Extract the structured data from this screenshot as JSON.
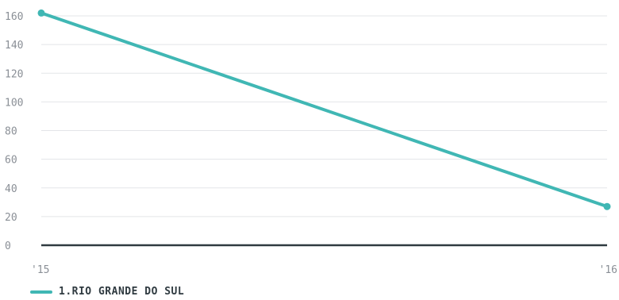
{
  "chart_data": {
    "type": "line",
    "x": [
      "'15",
      "'16"
    ],
    "series": [
      {
        "name": "1.RIO GRANDE DO SUL",
        "values": [
          162,
          27
        ],
        "color": "#40b7b4"
      }
    ],
    "yticks": [
      "0",
      "20",
      "40",
      "60",
      "80",
      "100",
      "120",
      "140",
      "160"
    ],
    "ylim": [
      0,
      160
    ],
    "grid": true,
    "legend_position": "bottom-left",
    "title": "",
    "xlabel": "",
    "ylabel": ""
  }
}
